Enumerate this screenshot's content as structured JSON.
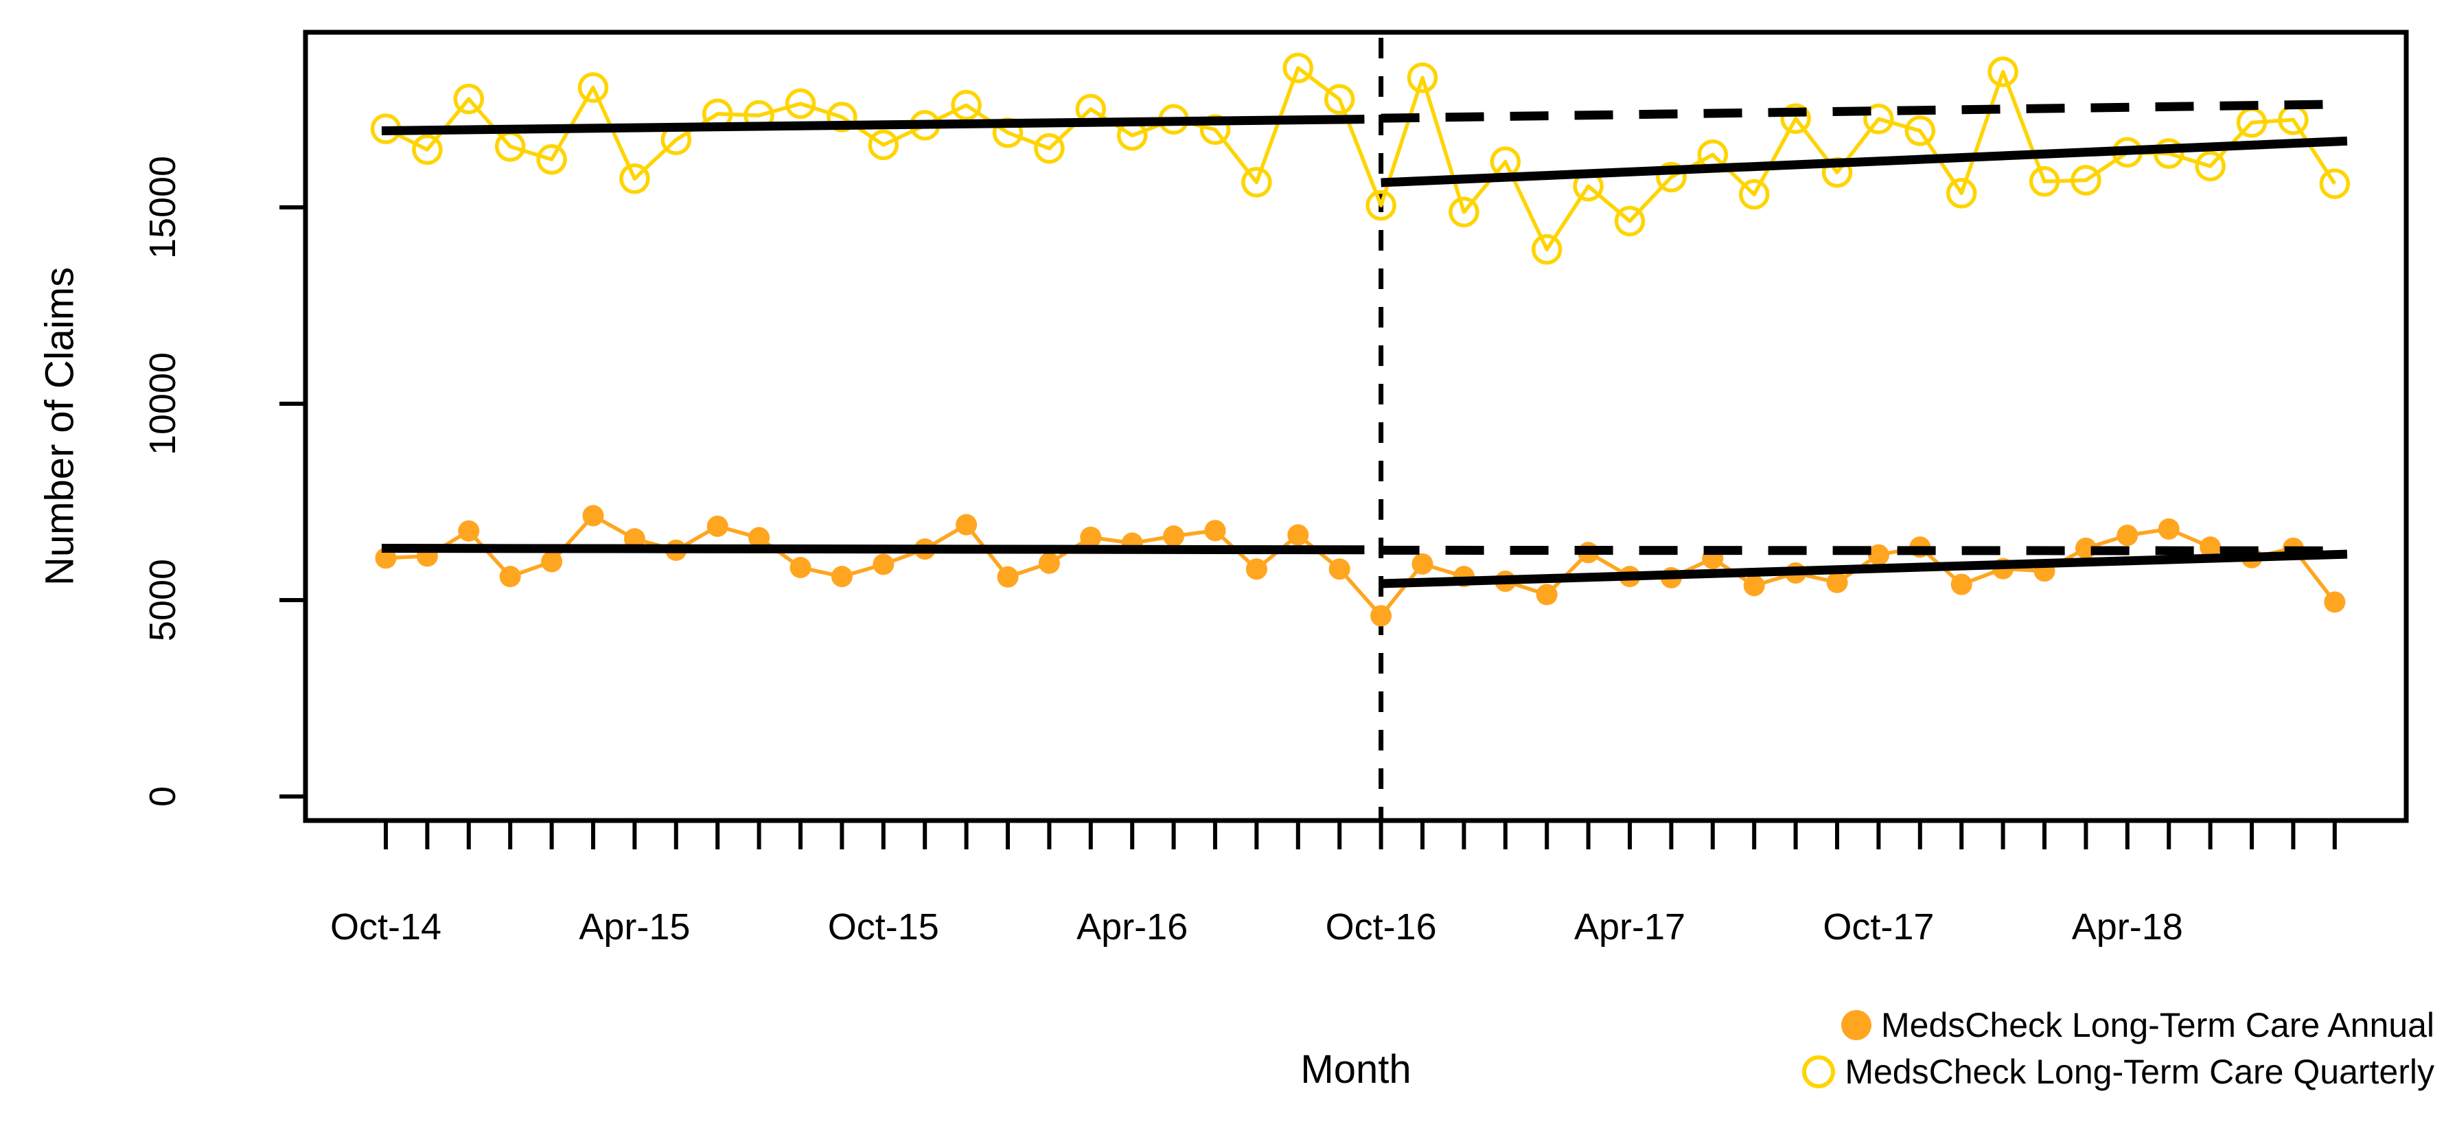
{
  "chart_data": {
    "type": "line",
    "title": "",
    "xlabel": "Month",
    "ylabel": "Number of Claims",
    "grid": false,
    "legend_position": "bottom-right",
    "y_ticks": [
      0,
      5000,
      10000,
      15000
    ],
    "ylim": [
      -600,
      19450
    ],
    "x_tick_labels": [
      "Oct-14",
      "Apr-15",
      "Oct-15",
      "Apr-16",
      "Oct-16",
      "Apr-17",
      "Oct-17",
      "Apr-18"
    ],
    "x_tick_every_months": 6,
    "categories": [
      "Oct-14",
      "Nov-14",
      "Dec-14",
      "Jan-15",
      "Feb-15",
      "Mar-15",
      "Apr-15",
      "May-15",
      "Jun-15",
      "Jul-15",
      "Aug-15",
      "Sep-15",
      "Oct-15",
      "Nov-15",
      "Dec-15",
      "Jan-16",
      "Feb-16",
      "Mar-16",
      "Apr-16",
      "May-16",
      "Jun-16",
      "Jul-16",
      "Aug-16",
      "Sep-16",
      "Oct-16",
      "Nov-16",
      "Dec-16",
      "Jan-17",
      "Feb-17",
      "Mar-17",
      "Apr-17",
      "May-17",
      "Jun-17",
      "Jul-17",
      "Aug-17",
      "Sep-17",
      "Oct-17",
      "Nov-17",
      "Dec-17",
      "Jan-18",
      "Feb-18",
      "Mar-18",
      "Apr-18",
      "May-18",
      "Jun-18",
      "Jul-18",
      "Aug-18",
      "Sep-18"
    ],
    "series": [
      {
        "name": "MedsCheck Long-Term Care Annual",
        "marker": "filled-circle",
        "color": "#FFA51F",
        "values": [
          6070,
          6120,
          6760,
          5600,
          5980,
          7150,
          6560,
          6270,
          6880,
          6590,
          5830,
          5600,
          5910,
          6300,
          6920,
          5590,
          5940,
          6600,
          6450,
          6630,
          6770,
          5790,
          6660,
          5790,
          4600,
          5920,
          5600,
          5480,
          5140,
          6210,
          5600,
          5570,
          6060,
          5370,
          5690,
          5450,
          6150,
          6350,
          5400,
          5800,
          5740,
          6320,
          6650,
          6810,
          6350,
          6080,
          6320,
          4950
        ]
      },
      {
        "name": "MedsCheck Long-Term Care Quarterly",
        "marker": "open-circle",
        "color": "#FFD400",
        "values": [
          17000,
          16470,
          17760,
          16550,
          16220,
          18050,
          15730,
          16720,
          17380,
          17340,
          17640,
          17300,
          16590,
          17090,
          17600,
          16900,
          16500,
          17500,
          16830,
          17240,
          16980,
          15640,
          18550,
          17750,
          15050,
          18300,
          14880,
          16160,
          13930,
          15540,
          14650,
          15770,
          16340,
          15330,
          17260,
          15890,
          17250,
          16950,
          15360,
          18450,
          15660,
          15690,
          16400,
          16370,
          16050,
          17160,
          17230,
          15600
        ]
      }
    ],
    "intervention_line": {
      "at_month": "Oct-16",
      "month_index": 24,
      "style": "dashed-vertical",
      "color": "#000000"
    },
    "trend_lines": [
      {
        "name": "annual-pre-trend",
        "style": "solid",
        "x1": -0.1,
        "y1": 16950,
        "x2": 23.6,
        "y2": 17245,
        "series": "quarterly"
      },
      {
        "name": "quarterly-pre-trend",
        "style": "solid",
        "x1": -0.1,
        "y1": 6320,
        "x2": 23.6,
        "y2": 6280,
        "series": "annual"
      },
      {
        "name": "quarterly-counterfactual",
        "style": "dashed",
        "x1": 24,
        "y1": 17270,
        "x2": 47.3,
        "y2": 17630,
        "series": "quarterly"
      },
      {
        "name": "annual-counterfactual",
        "style": "dashed",
        "x1": 24,
        "y1": 6270,
        "x2": 47.3,
        "y2": 6255,
        "series": "annual"
      },
      {
        "name": "quarterly-post-trend",
        "style": "solid",
        "x1": 24,
        "y1": 15630,
        "x2": 47.3,
        "y2": 16690,
        "series": "quarterly"
      },
      {
        "name": "annual-post-trend",
        "style": "solid",
        "x1": 24,
        "y1": 5420,
        "x2": 47.3,
        "y2": 6170,
        "series": "annual"
      }
    ],
    "colors": {
      "axis": "#000000",
      "trend": "#000000",
      "background": "#FFFFFF"
    }
  }
}
